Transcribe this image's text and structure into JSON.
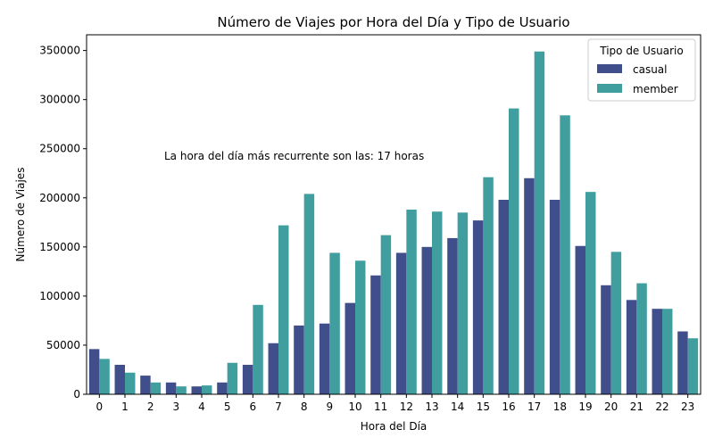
{
  "chart_data": {
    "type": "bar",
    "title": "Número de Viajes por Hora del Día y Tipo de Usuario",
    "xlabel": "Hora del Día",
    "ylabel": "Número de Viajes",
    "categories": [
      "0",
      "1",
      "2",
      "3",
      "4",
      "5",
      "6",
      "7",
      "8",
      "9",
      "10",
      "11",
      "12",
      "13",
      "14",
      "15",
      "16",
      "17",
      "18",
      "19",
      "20",
      "21",
      "22",
      "23"
    ],
    "series": [
      {
        "name": "casual",
        "color": "#404f8c",
        "values": [
          46000,
          30000,
          19000,
          12000,
          8000,
          12000,
          30000,
          52000,
          70000,
          72000,
          93000,
          121000,
          144000,
          150000,
          159000,
          177000,
          198000,
          220000,
          198000,
          151000,
          111000,
          96000,
          87000,
          64000
        ]
      },
      {
        "name": "member",
        "color": "#419e9f",
        "values": [
          36000,
          22000,
          12000,
          8000,
          9000,
          32000,
          91000,
          172000,
          204000,
          144000,
          136000,
          162000,
          188000,
          186000,
          185000,
          221000,
          291000,
          349000,
          284000,
          206000,
          145000,
          113000,
          87000,
          57000
        ]
      }
    ],
    "yticks": [
      0,
      50000,
      100000,
      150000,
      200000,
      250000,
      300000,
      350000
    ],
    "ylim": [
      0,
      366000
    ],
    "grid": false,
    "legend": {
      "title": "Tipo de Usuario",
      "position": "top-right"
    },
    "annotation": "La hora del día más recurrente son las: 17 horas"
  }
}
